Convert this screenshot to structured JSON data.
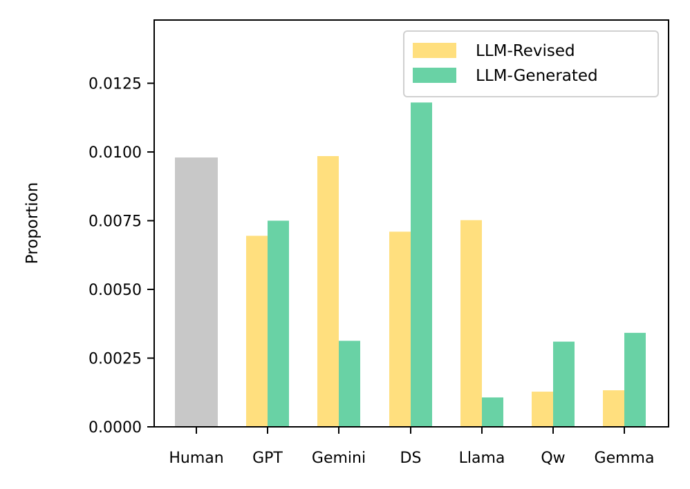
{
  "chart_data": {
    "type": "bar",
    "title": "",
    "xlabel": "",
    "ylabel": "Proportion",
    "ylim": [
      0,
      0.0148
    ],
    "yticks": [
      0.0,
      0.0025,
      0.005,
      0.0075,
      0.01,
      0.0125
    ],
    "ytick_labels": [
      "0.0000",
      "0.0025",
      "0.0050",
      "0.0075",
      "0.0100",
      "0.0125"
    ],
    "categories": [
      "Human",
      "GPT",
      "Gemini",
      "DS",
      "Llama",
      "Qw",
      "Gemma"
    ],
    "human": {
      "category": "Human",
      "value": 0.0098,
      "color": "#c8c8c8"
    },
    "series": [
      {
        "name": "LLM-Revised",
        "color": "#ffdf7e",
        "values": [
          null,
          0.00695,
          0.00985,
          0.0071,
          0.00752,
          0.00128,
          0.00133
        ]
      },
      {
        "name": "LLM-Generated",
        "color": "#69d2a5",
        "values": [
          null,
          0.0075,
          0.00313,
          0.0118,
          0.00107,
          0.0031,
          0.00342
        ]
      }
    ],
    "legend_position": "top-right",
    "grid": false
  }
}
